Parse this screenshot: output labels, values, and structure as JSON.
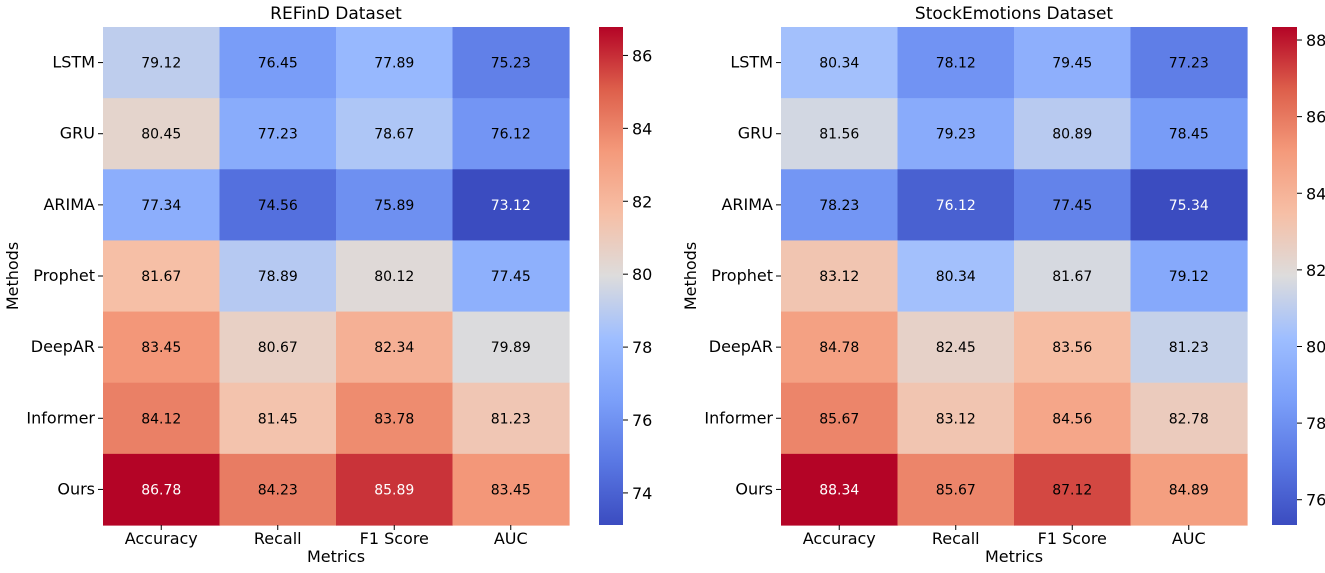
{
  "chart_data": [
    {
      "type": "heatmap",
      "title": "REFinD Dataset",
      "xlabel": "Metrics",
      "ylabel": "Methods",
      "x_categories": [
        "Accuracy",
        "Recall",
        "F1 Score",
        "AUC"
      ],
      "y_categories": [
        "LSTM",
        "GRU",
        "ARIMA",
        "Prophet",
        "DeepAR",
        "Informer",
        "Ours"
      ],
      "values": [
        [
          79.12,
          76.45,
          77.89,
          75.23
        ],
        [
          80.45,
          77.23,
          78.67,
          76.12
        ],
        [
          77.34,
          74.56,
          75.89,
          73.12
        ],
        [
          81.67,
          78.89,
          80.12,
          77.45
        ],
        [
          83.45,
          80.67,
          82.34,
          79.89
        ],
        [
          84.12,
          81.45,
          83.78,
          81.23
        ],
        [
          86.78,
          84.23,
          85.89,
          83.45
        ]
      ],
      "colormap": "coolwarm",
      "colorbar": {
        "min": 73.12,
        "max": 86.78,
        "ticks": [
          74,
          76,
          78,
          80,
          82,
          84,
          86
        ]
      }
    },
    {
      "type": "heatmap",
      "title": "StockEmotions Dataset",
      "xlabel": "Metrics",
      "ylabel": "Methods",
      "x_categories": [
        "Accuracy",
        "Recall",
        "F1 Score",
        "AUC"
      ],
      "y_categories": [
        "LSTM",
        "GRU",
        "ARIMA",
        "Prophet",
        "DeepAR",
        "Informer",
        "Ours"
      ],
      "values": [
        [
          80.34,
          78.12,
          79.45,
          77.23
        ],
        [
          81.56,
          79.23,
          80.89,
          78.45
        ],
        [
          78.23,
          76.12,
          77.45,
          75.34
        ],
        [
          83.12,
          80.34,
          81.67,
          79.12
        ],
        [
          84.78,
          82.45,
          83.56,
          81.23
        ],
        [
          85.67,
          83.12,
          84.56,
          82.78
        ],
        [
          88.34,
          85.67,
          87.12,
          84.89
        ]
      ],
      "colormap": "coolwarm",
      "colorbar": {
        "min": 75.34,
        "max": 88.34,
        "ticks": [
          76,
          78,
          80,
          82,
          84,
          86,
          88
        ]
      }
    }
  ]
}
